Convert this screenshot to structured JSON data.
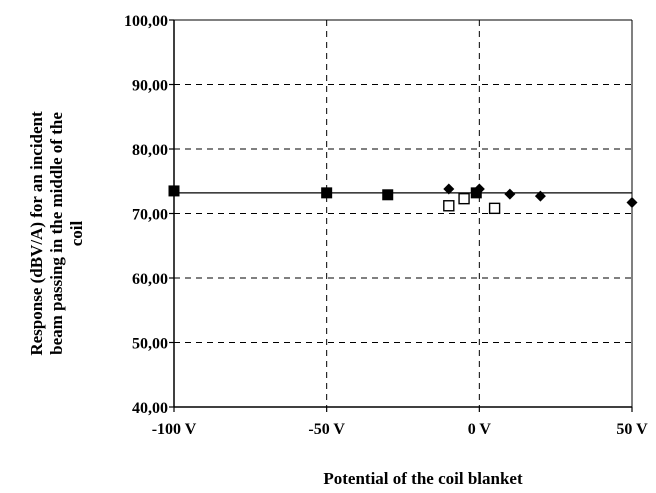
{
  "chart_data": {
    "type": "scatter",
    "title": "",
    "xlabel": "Potential of the coil blanket",
    "ylabel_lines": [
      "Response (dBV/A) for an incident",
      "beam passing in the middle of the",
      "coil"
    ],
    "xlim": [
      -100,
      50
    ],
    "ylim": [
      40,
      100
    ],
    "x_ticks": [
      {
        "value": -100,
        "label": "-100 V"
      },
      {
        "value": -50,
        "label": "-50 V"
      },
      {
        "value": 0,
        "label": "0 V"
      },
      {
        "value": 50,
        "label": "50 V"
      }
    ],
    "y_ticks": [
      {
        "value": 40,
        "label": "40,00"
      },
      {
        "value": 50,
        "label": "50,00"
      },
      {
        "value": 60,
        "label": "60,00"
      },
      {
        "value": 70,
        "label": "70,00"
      },
      {
        "value": 80,
        "label": "80,00"
      },
      {
        "value": 90,
        "label": "90,00"
      },
      {
        "value": 100,
        "label": "100,00"
      }
    ],
    "grid": true,
    "reference_line": {
      "y": 73.2
    },
    "series": [
      {
        "marker": "filled-square",
        "color": "#000000",
        "x": [
          -100,
          -50,
          -30,
          -1
        ],
        "y": [
          73.5,
          73.2,
          72.9,
          73.2
        ]
      },
      {
        "marker": "open-square",
        "color": "#000000",
        "x": [
          -10,
          -5,
          5
        ],
        "y": [
          71.2,
          72.3,
          70.8
        ]
      },
      {
        "marker": "diamond",
        "color": "#000000",
        "x": [
          -10,
          0,
          10,
          20,
          50
        ],
        "y": [
          73.8,
          73.8,
          73.0,
          72.7,
          71.7
        ]
      }
    ]
  }
}
